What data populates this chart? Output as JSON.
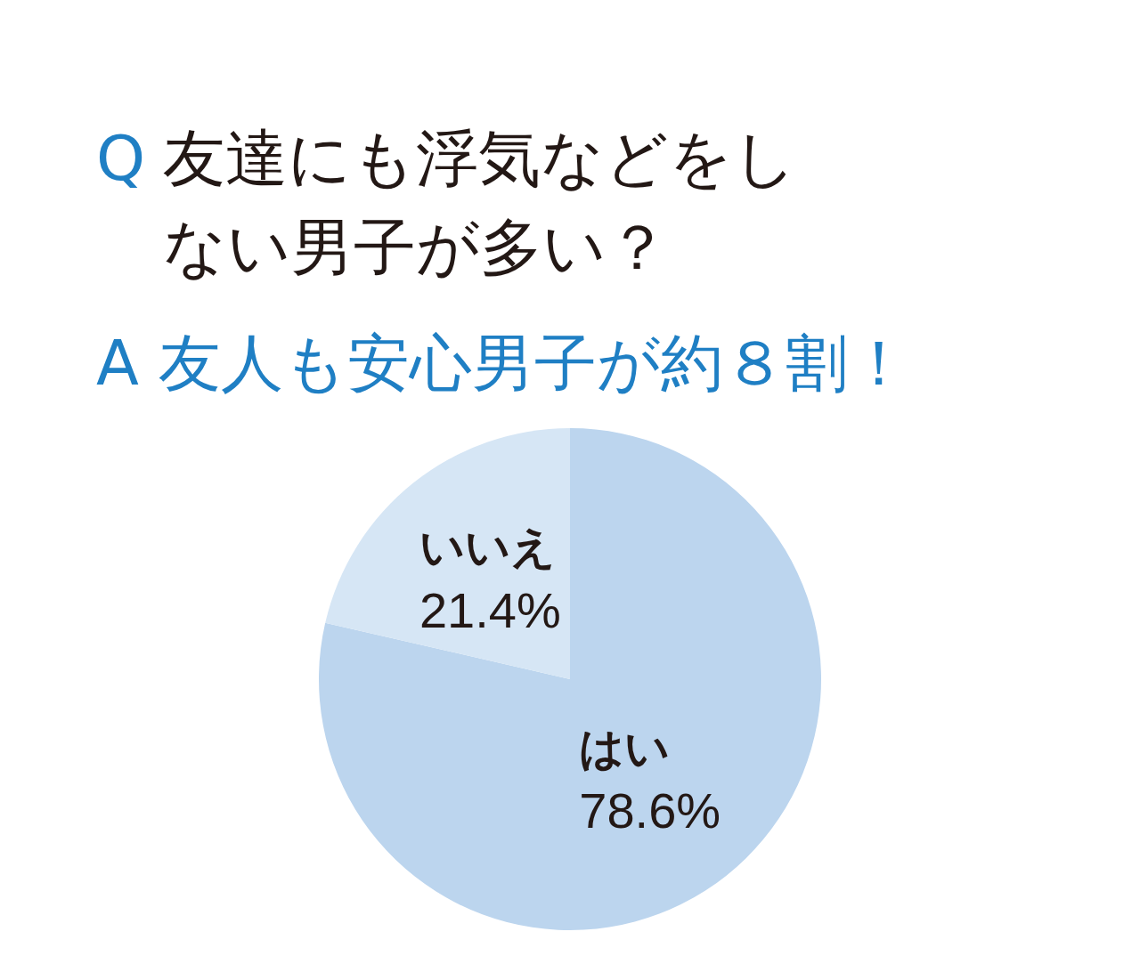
{
  "chart_data": {
    "type": "pie",
    "title": "Q 友達にも浮気などをしない男子が多い？",
    "subtitle": "A 友人も安心男子が約８割！",
    "categories": [
      "はい",
      "いいえ"
    ],
    "values": [
      78.6,
      21.4
    ],
    "colors": [
      "#bcd5ee",
      "#d6e6f5"
    ],
    "value_labels": [
      "78.6%",
      "21.4%"
    ],
    "legend": false
  }
}
